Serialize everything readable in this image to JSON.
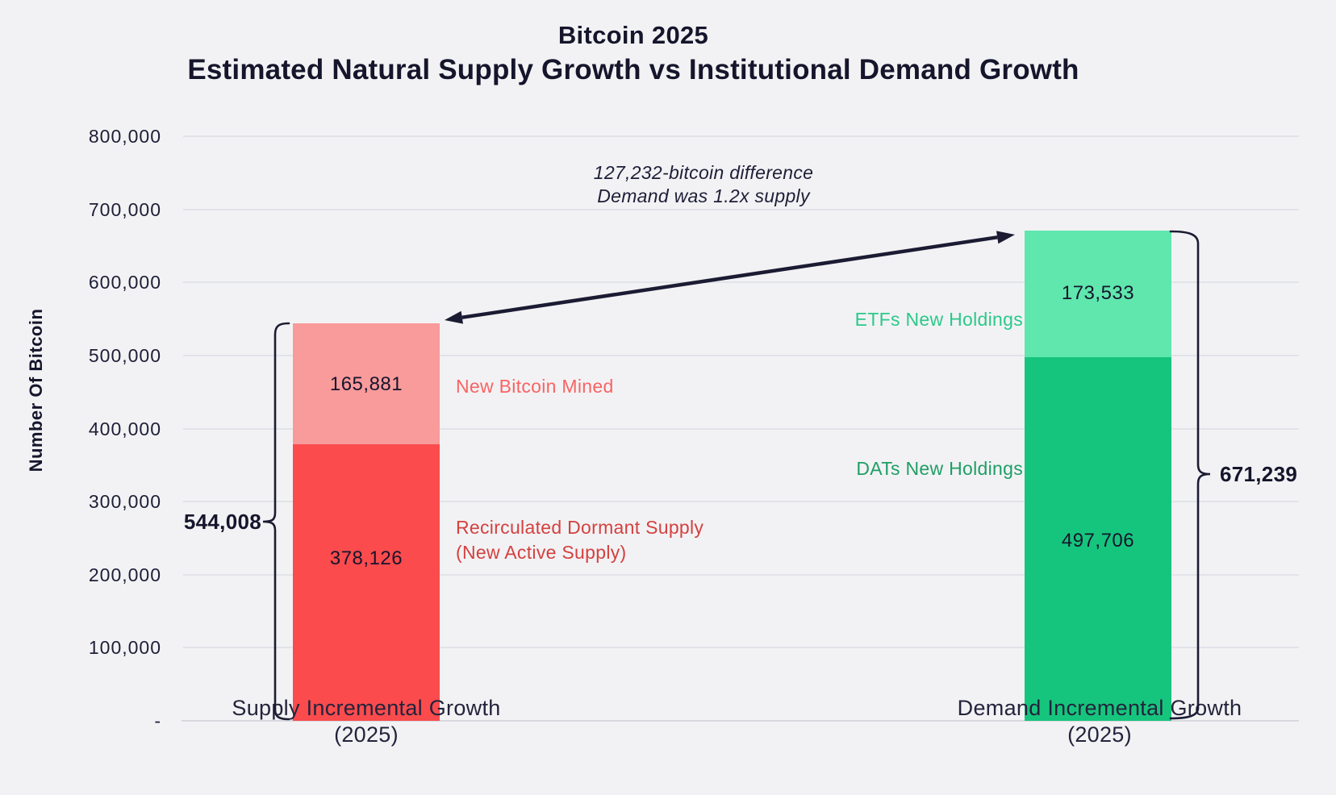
{
  "chart_data": {
    "type": "bar",
    "stacked": true,
    "title_line1": "Bitcoin 2025",
    "title_line2": "Estimated Natural Supply Growth vs Institutional Demand Growth",
    "ylabel": "Number Of Bitcoin",
    "ylim": [
      0,
      800000
    ],
    "grid": true,
    "y_ticks": [
      {
        "label": "800,000",
        "value": 800000
      },
      {
        "label": "700,000",
        "value": 700000
      },
      {
        "label": "600,000",
        "value": 600000
      },
      {
        "label": "500,000",
        "value": 500000
      },
      {
        "label": "400,000",
        "value": 400000
      },
      {
        "label": "300,000",
        "value": 300000
      },
      {
        "label": "200,000",
        "value": 200000
      },
      {
        "label": "100,000",
        "value": 100000
      },
      {
        "label": "-",
        "value": 0
      }
    ],
    "bars": [
      {
        "category_line1": "Supply Incremental Growth",
        "category_line2": "(2025)",
        "total_value": 544008,
        "total_label": "544,008",
        "segments": [
          {
            "name": "Recirculated Dormant Supply (New Active Supply)",
            "value": 378126,
            "value_label": "378,126",
            "color": "#fb4b4d"
          },
          {
            "name": "New Bitcoin Mined",
            "value": 165881,
            "value_label": "165,881",
            "color": "#f99a9b"
          }
        ]
      },
      {
        "category_line1": "Demand Incremental Growth",
        "category_line2": "(2025)",
        "total_value": 671239,
        "total_label": "671,239",
        "segments": [
          {
            "name": "DATs New Holdings",
            "value": 497706,
            "value_label": "497,706",
            "color": "#16c57d"
          },
          {
            "name": "ETFs New Holdings",
            "value": 173533,
            "value_label": "173,533",
            "color": "#5fe7ad"
          }
        ]
      }
    ],
    "side_labels": {
      "new_bitcoin_mined": {
        "text": "New Bitcoin Mined",
        "color": "#f96463"
      },
      "recirculated_line1": {
        "text": "Recirculated Dormant Supply",
        "color": "#d4413f"
      },
      "recirculated_line2": {
        "text": "(New Active Supply)",
        "color": "#d4413f"
      },
      "etfs": {
        "text": "ETFs New Holdings",
        "color": "#2bc98a"
      },
      "dats": {
        "text": "DATs New Holdings",
        "color": "#1f9e66"
      }
    },
    "difference_annotation": {
      "line1": "127,232-bitcoin difference",
      "line2": "Demand was 1.2x supply"
    },
    "colors": {
      "background": "#f2f2f4",
      "text_navy": "#15152c",
      "supply_main": "#fb4b4d",
      "supply_top": "#f99a9b",
      "demand_main": "#16c57d",
      "demand_top": "#5fe7ad",
      "gridline": "#e2e3e9",
      "arrow": "#1b1b33"
    }
  }
}
